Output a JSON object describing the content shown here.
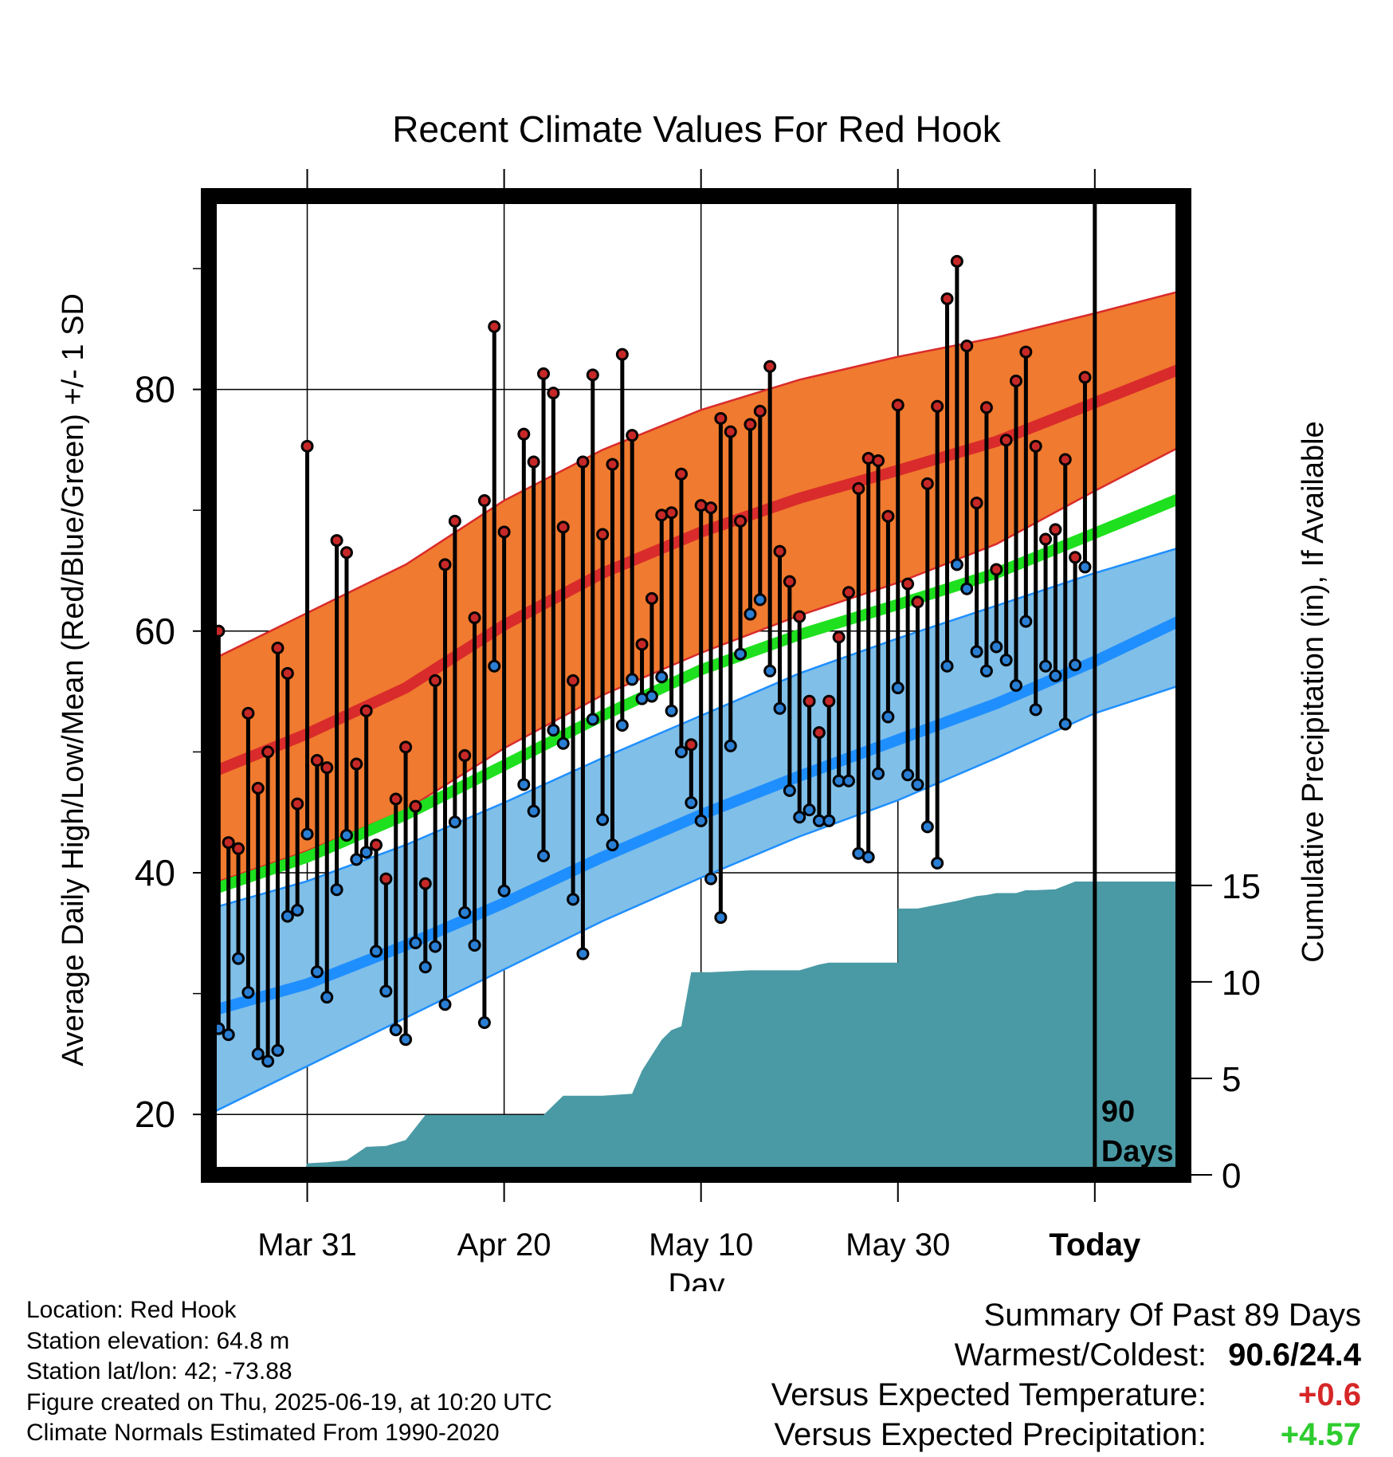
{
  "chart_data": {
    "type": "line",
    "title": "Recent Climate Values For Red Hook",
    "xlabel": "Day",
    "ylabel": "Average Daily High/Low/Mean (Red/Blue/Green) +/- 1 SD",
    "y2label": "Cumulative Precipitation (in), If Available",
    "x_ticks": [
      "Mar 31",
      "Apr 20",
      "May 10",
      "May 30",
      "Today"
    ],
    "x_range_days": [
      -90,
      9
    ],
    "y_range": [
      15,
      96
    ],
    "y_ticks": [
      20,
      40,
      60,
      80
    ],
    "y2_ticks": [
      0,
      5,
      10,
      15
    ],
    "y2_range": [
      0,
      15.2
    ],
    "grid": true,
    "today_marker_label": [
      "90",
      "Days"
    ],
    "colors": {
      "high_band": "#f07a2f",
      "high_mean": "#d92b2b",
      "low_band": "#80bfe8",
      "low_mean": "#1f8fff",
      "mean": "#1ee01e",
      "precip": "#4a9aa5",
      "high_dot": "#c62828",
      "low_dot": "#2a7fd4"
    },
    "normals": {
      "days": [
        -90,
        -80,
        -70,
        -60,
        -50,
        -40,
        -30,
        -20,
        -10,
        0,
        9
      ],
      "high_mean": [
        48.2,
        51.5,
        55.3,
        60.5,
        64.8,
        68.2,
        71.0,
        73.3,
        75.7,
        78.9,
        81.8
      ],
      "high_upper": [
        57.5,
        61.5,
        65.5,
        70.8,
        75.0,
        78.3,
        80.8,
        82.7,
        84.3,
        86.3,
        88.2
      ],
      "high_lower": [
        39.0,
        41.8,
        45.2,
        50.3,
        54.7,
        58.2,
        61.3,
        64.0,
        67.2,
        71.6,
        75.4
      ],
      "mean": [
        38.5,
        41.3,
        44.8,
        48.9,
        53.0,
        56.8,
        59.7,
        62.2,
        64.8,
        68.1,
        71.1
      ],
      "low_mean": [
        28.5,
        30.8,
        34.0,
        37.5,
        41.3,
        44.8,
        48.0,
        51.0,
        54.0,
        57.5,
        61.0
      ],
      "low_upper": [
        37.0,
        39.3,
        42.3,
        45.8,
        49.5,
        53.0,
        56.5,
        59.4,
        62.1,
        64.8,
        67.0
      ],
      "low_lower": [
        20.0,
        24.0,
        28.0,
        32.0,
        36.0,
        39.6,
        43.0,
        46.0,
        49.5,
        53.2,
        55.6
      ]
    },
    "daily": {
      "days": [
        -90,
        -89,
        -88,
        -87,
        -86,
        -85,
        -84,
        -83,
        -82,
        -81,
        -80,
        -79,
        -78,
        -77,
        -76,
        -75,
        -74,
        -73,
        -72,
        -71,
        -70,
        -69,
        -68,
        -67,
        -66,
        -65,
        -64,
        -63,
        -62,
        -61,
        -60,
        -59,
        -58,
        -57,
        -56,
        -55,
        -54,
        -53,
        -52,
        -51,
        -50,
        -49,
        -48,
        -47,
        -46,
        -45,
        -44,
        -43,
        -42,
        -41,
        -40,
        -39,
        -38,
        -37,
        -36,
        -35,
        -34,
        -33,
        -32,
        -31,
        -30,
        -29,
        -28,
        -27,
        -26,
        -25,
        -24,
        -23,
        -22,
        -21,
        -20,
        -19,
        -18,
        -17,
        -16,
        -15,
        -14,
        -13,
        -12,
        -11,
        -10,
        -9,
        -8,
        -7,
        -6,
        -5,
        -4,
        -3,
        -2,
        -1
      ],
      "high": [
        48.5,
        60.0,
        42.5,
        42.0,
        53.2,
        47.0,
        50.0,
        58.6,
        56.5,
        45.7,
        75.3,
        49.3,
        48.7,
        67.5,
        66.5,
        49.0,
        53.4,
        42.3,
        39.5,
        46.1,
        50.4,
        45.5,
        39.1,
        55.9,
        65.5,
        69.1,
        49.7,
        61.1,
        70.8,
        85.2,
        68.2,
        null,
        76.3,
        74.0,
        81.3,
        79.7,
        68.6,
        55.9,
        74.0,
        81.2,
        68.0,
        73.8,
        82.9,
        76.2,
        58.9,
        62.7,
        69.6,
        69.8,
        73.0,
        50.6,
        70.4,
        70.2,
        77.6,
        76.5,
        69.1,
        77.1,
        78.2,
        81.9,
        66.6,
        64.1,
        61.2,
        54.2,
        51.6,
        54.2,
        59.5,
        63.2,
        71.8,
        74.3,
        74.1,
        69.5,
        78.7,
        63.9,
        62.4,
        72.2,
        78.6,
        87.5,
        90.6,
        83.6,
        70.6,
        78.5,
        65.1,
        75.8,
        80.7,
        83.1,
        75.3,
        67.6,
        68.4,
        74.2,
        66.1,
        81.0
      ],
      "low": [
        27.7,
        27.1,
        26.6,
        32.9,
        30.1,
        25.0,
        24.4,
        25.3,
        36.4,
        36.9,
        43.2,
        31.8,
        29.7,
        38.6,
        43.1,
        41.1,
        41.7,
        33.5,
        30.2,
        27.0,
        26.2,
        34.2,
        32.2,
        33.9,
        29.1,
        44.2,
        36.7,
        34.0,
        27.6,
        57.1,
        38.5,
        null,
        47.3,
        45.1,
        41.4,
        51.8,
        50.7,
        37.8,
        33.3,
        52.7,
        44.4,
        42.3,
        52.2,
        56.0,
        54.4,
        54.6,
        56.2,
        53.4,
        50.0,
        45.8,
        44.3,
        39.5,
        36.3,
        50.5,
        58.1,
        61.4,
        62.6,
        56.7,
        53.6,
        46.8,
        44.6,
        45.2,
        44.3,
        44.3,
        47.6,
        47.6,
        41.6,
        41.3,
        48.2,
        52.9,
        55.3,
        48.1,
        47.3,
        43.8,
        40.8,
        57.1,
        65.5,
        63.5,
        58.3,
        56.7,
        58.7,
        57.6,
        55.5,
        60.8,
        53.5,
        57.1,
        56.3,
        52.3,
        57.2,
        65.3
      ]
    },
    "precip": {
      "days": [
        -90,
        -80.5,
        -80,
        -78,
        -76,
        -74,
        -72,
        -70,
        -68,
        -66,
        -64,
        -60,
        -56,
        -54,
        -50,
        -47,
        -46,
        -45,
        -44,
        -43,
        -42,
        -41,
        -40,
        -39,
        -35,
        -30,
        -28,
        -27,
        -26,
        -25,
        -24,
        -20,
        -20,
        -18,
        -14,
        -12,
        -11,
        -10,
        -9,
        -8,
        -7,
        -6,
        -4,
        -2,
        -1,
        0,
        9
      ],
      "values": [
        0,
        0,
        0.6,
        0.65,
        0.75,
        1.45,
        1.5,
        1.8,
        3.1,
        3.1,
        3.1,
        3.1,
        3.1,
        4.1,
        4.1,
        4.2,
        5.4,
        6.2,
        7.0,
        7.5,
        7.7,
        10.5,
        10.5,
        10.5,
        10.6,
        10.6,
        10.9,
        11.0,
        11.0,
        11.0,
        11.0,
        11.0,
        13.8,
        13.8,
        14.2,
        14.45,
        14.5,
        14.6,
        14.6,
        14.6,
        14.75,
        14.75,
        14.8,
        15.2,
        15.2,
        15.2,
        15.2
      ]
    }
  },
  "info": {
    "location": "Location: Red Hook",
    "elevation": "Station elevation: 64.8 m",
    "latlon": "Station lat/lon: 42; -73.88",
    "created": "Figure created on Thu, 2025-06-19, at 10:20 UTC",
    "normals": "Climate Normals Estimated From 1990-2020"
  },
  "summary": {
    "heading": "Summary Of Past 89 Days",
    "warmest_label": "Warmest/Coldest:",
    "warmest_value": "90.6/24.4",
    "temp_label": "Versus Expected Temperature:",
    "temp_value": "+0.6",
    "precip_label": "Versus Expected Precipitation:",
    "precip_value": "+4.57"
  }
}
